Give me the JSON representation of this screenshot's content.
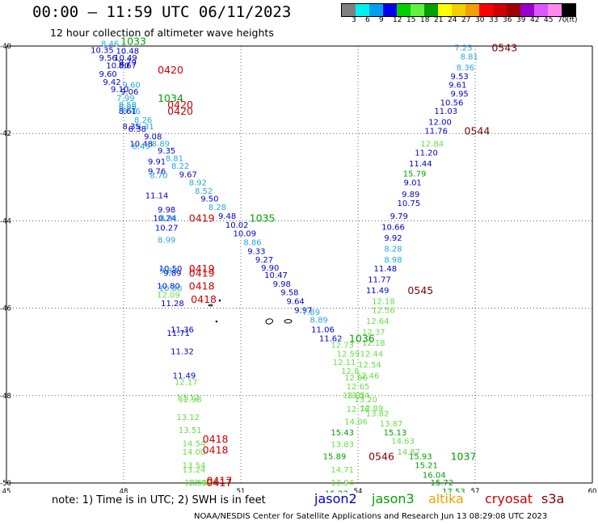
{
  "header": {
    "title": "00:00 – 11:59 UTC 06/11/2023",
    "subtitle": "12 hour collection of altimeter wave heights"
  },
  "legend": {
    "colors": [
      "#808080",
      "#00f0f0",
      "#00a0f0",
      "#0000f0",
      "#00d000",
      "#60f040",
      "#00a000",
      "#ffff00",
      "#f0d000",
      "#f0a000",
      "#ff0000",
      "#d00000",
      "#a00000",
      "#9900cc",
      "#dd55ff",
      "#ff88ee",
      "#000000"
    ],
    "labels": [
      "3",
      "6",
      "9",
      "12",
      "15",
      "18",
      "21",
      "24",
      "27",
      "30",
      "33",
      "36",
      "39",
      "42",
      "45",
      "70",
      "(ft)"
    ]
  },
  "axes": {
    "lat_labels": [
      "-40",
      "-42",
      "-44",
      "-46",
      "-48",
      "-50"
    ],
    "lon_labels": [
      "45",
      "48",
      "51",
      "54",
      "57",
      "60"
    ]
  },
  "satellite_colors": {
    "jason2": "#0000d0",
    "jason3": "#00a000",
    "altika": "#f0a000",
    "cryosat": "#d00000",
    "s3a": "#800000",
    "cyan": "#22a8e0",
    "light_green": "#66dd44"
  },
  "track_points": [
    {
      "lat": -39.95,
      "lon": 47.65,
      "v": "8.46",
      "c": "cyan"
    },
    {
      "lat": -40.1,
      "lon": 47.45,
      "v": "10.35",
      "c": "jason2"
    },
    {
      "lat": -40.12,
      "lon": 48.1,
      "v": "10.48",
      "c": "jason2"
    },
    {
      "lat": -40.28,
      "lon": 47.6,
      "v": "9.56",
      "c": "jason2"
    },
    {
      "lat": -40.28,
      "lon": 48.05,
      "v": "10.49",
      "c": "jason2"
    },
    {
      "lat": -40.38,
      "lon": 48.1,
      "v": "9.79",
      "c": "jason2"
    },
    {
      "lat": -40.45,
      "lon": 47.85,
      "v": "10.00",
      "c": "jason2"
    },
    {
      "lat": -40.45,
      "lon": 48.1,
      "v": "8.67",
      "c": "jason2"
    },
    {
      "lat": -40.65,
      "lon": 47.6,
      "v": "9.60",
      "c": "jason2"
    },
    {
      "lat": -40.83,
      "lon": 47.7,
      "v": "9.42",
      "c": "jason2"
    },
    {
      "lat": -40.9,
      "lon": 48.2,
      "v": "9.60",
      "c": "cyan"
    },
    {
      "lat": -41.0,
      "lon": 47.9,
      "v": "9.10",
      "c": "jason2"
    },
    {
      "lat": -41.05,
      "lon": 48.15,
      "v": "9.06",
      "c": "jason2"
    },
    {
      "lat": -41.2,
      "lon": 48.05,
      "v": "7.99",
      "c": "cyan"
    },
    {
      "lat": -41.35,
      "lon": 48.1,
      "v": "8.58",
      "c": "cyan"
    },
    {
      "lat": -41.4,
      "lon": 48.1,
      "v": "8.68",
      "c": "cyan"
    },
    {
      "lat": -41.5,
      "lon": 48.2,
      "v": "8.46",
      "c": "cyan"
    },
    {
      "lat": -41.5,
      "lon": 48.1,
      "v": "8.61",
      "c": "jason2"
    },
    {
      "lat": -41.7,
      "lon": 48.5,
      "v": "8.26",
      "c": "cyan"
    },
    {
      "lat": -41.85,
      "lon": 48.2,
      "v": "8.35",
      "c": "jason2"
    },
    {
      "lat": -41.85,
      "lon": 48.55,
      "v": "8.31",
      "c": "cyan"
    },
    {
      "lat": -41.9,
      "lon": 48.35,
      "v": "8.38",
      "c": "jason2"
    },
    {
      "lat": -42.08,
      "lon": 48.75,
      "v": "9.08",
      "c": "jason2"
    },
    {
      "lat": -42.25,
      "lon": 48.45,
      "v": "10.48",
      "c": "jason2"
    },
    {
      "lat": -42.25,
      "lon": 48.95,
      "v": "8.89",
      "c": "cyan"
    },
    {
      "lat": -42.3,
      "lon": 48.45,
      "v": "8.49",
      "c": "cyan"
    },
    {
      "lat": -42.4,
      "lon": 49.1,
      "v": "9.35",
      "c": "jason2"
    },
    {
      "lat": -42.58,
      "lon": 49.3,
      "v": "8.81",
      "c": "cyan"
    },
    {
      "lat": -42.65,
      "lon": 48.85,
      "v": "9.91",
      "c": "jason2"
    },
    {
      "lat": -42.75,
      "lon": 49.45,
      "v": "8.22",
      "c": "cyan"
    },
    {
      "lat": -42.87,
      "lon": 48.85,
      "v": "9.76",
      "c": "jason2"
    },
    {
      "lat": -42.95,
      "lon": 49.65,
      "v": "9.67",
      "c": "jason2"
    },
    {
      "lat": -42.97,
      "lon": 48.9,
      "v": "8.70",
      "c": "cyan"
    },
    {
      "lat": -43.13,
      "lon": 49.9,
      "v": "8.92",
      "c": "cyan"
    },
    {
      "lat": -43.33,
      "lon": 50.05,
      "v": "8.52",
      "c": "cyan"
    },
    {
      "lat": -43.43,
      "lon": 48.85,
      "v": "11.14",
      "c": "jason2"
    },
    {
      "lat": -43.5,
      "lon": 50.2,
      "v": "9.50",
      "c": "jason2"
    },
    {
      "lat": -43.7,
      "lon": 50.4,
      "v": "8.28",
      "c": "cyan"
    },
    {
      "lat": -43.75,
      "lon": 49.1,
      "v": "9.98",
      "c": "jason2"
    },
    {
      "lat": -43.9,
      "lon": 50.65,
      "v": "9.48",
      "c": "jason2"
    },
    {
      "lat": -43.95,
      "lon": 49.05,
      "v": "10.24",
      "c": "jason2"
    },
    {
      "lat": -43.95,
      "lon": 49.15,
      "v": "8.91",
      "c": "cyan"
    },
    {
      "lat": -44.1,
      "lon": 50.9,
      "v": "10.02",
      "c": "jason2"
    },
    {
      "lat": -44.17,
      "lon": 49.1,
      "v": "10.27",
      "c": "jason2"
    },
    {
      "lat": -44.3,
      "lon": 51.1,
      "v": "10.09",
      "c": "jason2"
    },
    {
      "lat": -44.45,
      "lon": 49.1,
      "v": "8.99",
      "c": "cyan"
    },
    {
      "lat": -44.5,
      "lon": 51.3,
      "v": "8.86",
      "c": "cyan"
    },
    {
      "lat": -44.7,
      "lon": 51.4,
      "v": "9.33",
      "c": "jason2"
    },
    {
      "lat": -44.9,
      "lon": 51.6,
      "v": "9.27",
      "c": "jason2"
    },
    {
      "lat": -45.08,
      "lon": 51.75,
      "v": "9.90",
      "c": "jason2"
    },
    {
      "lat": -45.1,
      "lon": 49.2,
      "v": "10.50",
      "c": "jason2"
    },
    {
      "lat": -45.15,
      "lon": 49.15,
      "v": "9.88",
      "c": "cyan"
    },
    {
      "lat": -45.2,
      "lon": 49.25,
      "v": "9.89",
      "c": "jason2"
    },
    {
      "lat": -45.25,
      "lon": 51.9,
      "v": "10.47",
      "c": "jason2"
    },
    {
      "lat": -45.45,
      "lon": 52.05,
      "v": "9.98",
      "c": "jason2"
    },
    {
      "lat": -45.5,
      "lon": 49.15,
      "v": "10.80",
      "c": "jason2"
    },
    {
      "lat": -45.55,
      "lon": 49.2,
      "v": "10.80",
      "c": "cyan"
    },
    {
      "lat": -45.65,
      "lon": 52.25,
      "v": "9.58",
      "c": "jason2"
    },
    {
      "lat": -45.7,
      "lon": 49.15,
      "v": "12.09",
      "c": "light_green"
    },
    {
      "lat": -45.85,
      "lon": 52.4,
      "v": "9.64",
      "c": "jason2"
    },
    {
      "lat": -45.9,
      "lon": 49.25,
      "v": "11.28",
      "c": "jason2"
    },
    {
      "lat": -46.05,
      "lon": 52.6,
      "v": "9.97",
      "c": "jason2"
    },
    {
      "lat": -46.1,
      "lon": 52.8,
      "v": "7.89",
      "c": "cyan"
    },
    {
      "lat": -46.28,
      "lon": 53.0,
      "v": "8.89",
      "c": "cyan"
    },
    {
      "lat": -46.5,
      "lon": 49.5,
      "v": "11.36",
      "c": "jason2"
    },
    {
      "lat": -46.5,
      "lon": 53.1,
      "v": "11.06",
      "c": "jason2"
    },
    {
      "lat": -46.58,
      "lon": 49.4,
      "v": "11.71",
      "c": "jason2"
    },
    {
      "lat": -46.7,
      "lon": 53.3,
      "v": "11.62",
      "c": "jason2"
    },
    {
      "lat": -46.85,
      "lon": 53.6,
      "v": "12.73",
      "c": "light_green"
    },
    {
      "lat": -47.0,
      "lon": 49.5,
      "v": "11.32",
      "c": "jason2"
    },
    {
      "lat": -47.05,
      "lon": 53.75,
      "v": "12.59",
      "c": "light_green"
    },
    {
      "lat": -47.25,
      "lon": 53.65,
      "v": "12.11",
      "c": "light_green"
    },
    {
      "lat": -47.45,
      "lon": 53.8,
      "v": "12.8",
      "c": "light_green"
    },
    {
      "lat": -47.55,
      "lon": 49.55,
      "v": "11.49",
      "c": "jason2"
    },
    {
      "lat": -47.6,
      "lon": 53.95,
      "v": "12.96",
      "c": "light_green"
    },
    {
      "lat": -47.7,
      "lon": 49.6,
      "v": "12.17",
      "c": "light_green"
    },
    {
      "lat": -47.8,
      "lon": 54.0,
      "v": "12.65",
      "c": "light_green"
    },
    {
      "lat": -48.0,
      "lon": 54.0,
      "v": "13.54",
      "c": "light_green"
    },
    {
      "lat": -48.0,
      "lon": 53.9,
      "v": "13.01",
      "c": "light_green"
    },
    {
      "lat": -48.05,
      "lon": 49.65,
      "v": "13.12",
      "c": "light_green"
    },
    {
      "lat": -48.1,
      "lon": 54.2,
      "v": "13.20",
      "c": "light_green"
    },
    {
      "lat": -48.1,
      "lon": 49.7,
      "v": "12.98",
      "c": "light_green"
    },
    {
      "lat": -48.3,
      "lon": 54.35,
      "v": "12.89",
      "c": "light_green"
    },
    {
      "lat": -48.32,
      "lon": 54.0,
      "v": "12.76",
      "c": "light_green"
    },
    {
      "lat": -48.42,
      "lon": 54.5,
      "v": "13.82",
      "c": "light_green"
    },
    {
      "lat": -48.5,
      "lon": 49.65,
      "v": "13.12",
      "c": "light_green"
    },
    {
      "lat": -48.6,
      "lon": 53.95,
      "v": "14.06",
      "c": "light_green"
    },
    {
      "lat": -48.65,
      "lon": 54.85,
      "v": "13.87",
      "c": "light_green"
    },
    {
      "lat": -48.8,
      "lon": 49.7,
      "v": "13.51",
      "c": "light_green"
    },
    {
      "lat": -48.85,
      "lon": 53.6,
      "v": "15.43",
      "c": "jason3"
    },
    {
      "lat": -48.85,
      "lon": 54.95,
      "v": "15.13",
      "c": "jason3"
    },
    {
      "lat": -49.05,
      "lon": 55.15,
      "v": "14.63",
      "c": "light_green"
    },
    {
      "lat": -49.1,
      "lon": 49.8,
      "v": "14.54",
      "c": "light_green"
    },
    {
      "lat": -49.12,
      "lon": 53.6,
      "v": "13.83",
      "c": "light_green"
    },
    {
      "lat": -49.3,
      "lon": 55.3,
      "v": "14.87",
      "c": "light_green"
    },
    {
      "lat": -49.3,
      "lon": 49.8,
      "v": "14.00",
      "c": "light_green"
    },
    {
      "lat": -49.4,
      "lon": 53.4,
      "v": "15.89",
      "c": "jason3"
    },
    {
      "lat": -49.4,
      "lon": 55.6,
      "v": "15.93",
      "c": "jason3"
    },
    {
      "lat": -49.6,
      "lon": 55.75,
      "v": "15.21",
      "c": "jason3"
    },
    {
      "lat": -49.6,
      "lon": 49.8,
      "v": "13.54",
      "c": "light_green"
    },
    {
      "lat": -49.7,
      "lon": 49.8,
      "v": "13.24",
      "c": "light_green"
    },
    {
      "lat": -49.7,
      "lon": 53.6,
      "v": "14.71",
      "c": "light_green"
    },
    {
      "lat": -49.82,
      "lon": 55.95,
      "v": "16.04",
      "c": "jason3"
    },
    {
      "lat": -50.0,
      "lon": 49.85,
      "v": "13.56",
      "c": "light_green"
    },
    {
      "lat": -50.0,
      "lon": 49.95,
      "v": "13.99",
      "c": "light_green"
    },
    {
      "lat": -50.0,
      "lon": 53.6,
      "v": "13.94",
      "c": "light_green"
    },
    {
      "lat": -50.0,
      "lon": 56.15,
      "v": "15.72",
      "c": "jason3"
    },
    {
      "lat": -50.2,
      "lon": 56.45,
      "v": "17.53",
      "c": "jason3"
    },
    {
      "lat": -50.25,
      "lon": 53.45,
      "v": "15.23",
      "c": "jason3"
    },
    {
      "lat": -50.4,
      "lon": 56.5,
      "v": "15.77",
      "c": "jason3"
    },
    {
      "lat": -40.05,
      "lon": 56.7,
      "v": "7.25",
      "c": "cyan"
    },
    {
      "lat": -40.25,
      "lon": 56.85,
      "v": "8.81",
      "c": "cyan"
    },
    {
      "lat": -40.5,
      "lon": 56.75,
      "v": "8.36",
      "c": "cyan"
    },
    {
      "lat": -40.7,
      "lon": 56.6,
      "v": "9.53",
      "c": "jason2"
    },
    {
      "lat": -40.9,
      "lon": 56.55,
      "v": "9.61",
      "c": "jason2"
    },
    {
      "lat": -41.1,
      "lon": 56.6,
      "v": "9.95",
      "c": "jason2"
    },
    {
      "lat": -41.3,
      "lon": 56.4,
      "v": "10.56",
      "c": "jason2"
    },
    {
      "lat": -41.5,
      "lon": 56.25,
      "v": "11.03",
      "c": "jason2"
    },
    {
      "lat": -41.75,
      "lon": 56.1,
      "v": "12.00",
      "c": "jason2"
    },
    {
      "lat": -41.95,
      "lon": 56.0,
      "v": "11.76",
      "c": "jason2"
    },
    {
      "lat": -42.25,
      "lon": 55.9,
      "v": "12.84",
      "c": "light_green"
    },
    {
      "lat": -42.45,
      "lon": 55.75,
      "v": "11.20",
      "c": "jason2"
    },
    {
      "lat": -42.7,
      "lon": 55.6,
      "v": "11.44",
      "c": "jason2"
    },
    {
      "lat": -42.93,
      "lon": 55.45,
      "v": "15.79",
      "c": "jason3"
    },
    {
      "lat": -43.13,
      "lon": 55.4,
      "v": "9.01",
      "c": "jason2"
    },
    {
      "lat": -43.4,
      "lon": 55.35,
      "v": "9.89",
      "c": "jason2"
    },
    {
      "lat": -43.6,
      "lon": 55.3,
      "v": "10.75",
      "c": "jason2"
    },
    {
      "lat": -43.9,
      "lon": 55.05,
      "v": "9.79",
      "c": "jason2"
    },
    {
      "lat": -44.15,
      "lon": 54.9,
      "v": "10.66",
      "c": "jason2"
    },
    {
      "lat": -44.4,
      "lon": 54.9,
      "v": "9.92",
      "c": "jason2"
    },
    {
      "lat": -44.65,
      "lon": 54.9,
      "v": "8.28",
      "c": "cyan"
    },
    {
      "lat": -44.9,
      "lon": 54.9,
      "v": "8.98",
      "c": "cyan"
    },
    {
      "lat": -45.1,
      "lon": 54.7,
      "v": "11.48",
      "c": "jason2"
    },
    {
      "lat": -45.35,
      "lon": 54.55,
      "v": "11.77",
      "c": "jason2"
    },
    {
      "lat": -45.6,
      "lon": 54.5,
      "v": "11.49",
      "c": "jason2"
    },
    {
      "lat": -45.85,
      "lon": 54.65,
      "v": "12.18",
      "c": "light_green"
    },
    {
      "lat": -46.05,
      "lon": 54.65,
      "v": "12.56",
      "c": "light_green"
    },
    {
      "lat": -46.3,
      "lon": 54.5,
      "v": "12.64",
      "c": "light_green"
    },
    {
      "lat": -46.55,
      "lon": 54.4,
      "v": "12.37",
      "c": "light_green"
    },
    {
      "lat": -46.8,
      "lon": 54.4,
      "v": "12.18",
      "c": "light_green"
    },
    {
      "lat": -47.05,
      "lon": 54.35,
      "v": "12.44",
      "c": "light_green"
    },
    {
      "lat": -47.3,
      "lon": 54.3,
      "v": "12.54",
      "c": "light_green"
    },
    {
      "lat": -47.55,
      "lon": 54.25,
      "v": "12.46",
      "c": "light_green"
    }
  ],
  "time_labels": [
    {
      "lat": -39.9,
      "lon": 48.25,
      "v": "1033",
      "c": "jason3"
    },
    {
      "lat": -40.55,
      "lon": 49.2,
      "v": "0420",
      "c": "cryosat"
    },
    {
      "lat": -41.2,
      "lon": 49.2,
      "v": "1034",
      "c": "jason3"
    },
    {
      "lat": -41.35,
      "lon": 49.45,
      "v": "0420",
      "c": "cryosat"
    },
    {
      "lat": -41.5,
      "lon": 49.45,
      "v": "0420",
      "c": "cryosat"
    },
    {
      "lat": -43.95,
      "lon": 50.0,
      "v": "0419",
      "c": "cryosat"
    },
    {
      "lat": -43.95,
      "lon": 51.55,
      "v": "1035",
      "c": "jason3"
    },
    {
      "lat": -45.1,
      "lon": 50.0,
      "v": "0419",
      "c": "cryosat"
    },
    {
      "lat": -45.2,
      "lon": 50.0,
      "v": "0419",
      "c": "cryosat"
    },
    {
      "lat": -45.5,
      "lon": 50.0,
      "v": "0418",
      "c": "cryosat"
    },
    {
      "lat": -45.8,
      "lon": 50.05,
      "v": "0418",
      "c": "cryosat"
    },
    {
      "lat": -46.7,
      "lon": 54.1,
      "v": "1036",
      "c": "jason3"
    },
    {
      "lat": -49.0,
      "lon": 50.35,
      "v": "0418",
      "c": "cryosat"
    },
    {
      "lat": -49.25,
      "lon": 50.35,
      "v": "0418",
      "c": "cryosat"
    },
    {
      "lat": -49.95,
      "lon": 50.45,
      "v": "0417",
      "c": "cryosat"
    },
    {
      "lat": -50.0,
      "lon": 50.45,
      "v": "0417",
      "c": "cryosat"
    },
    {
      "lat": -40.05,
      "lon": 57.75,
      "v": "0543",
      "c": "s3a"
    },
    {
      "lat": -41.95,
      "lon": 57.05,
      "v": "0544",
      "c": "s3a"
    },
    {
      "lat": -45.6,
      "lon": 55.6,
      "v": "0545",
      "c": "s3a"
    },
    {
      "lat": -49.4,
      "lon": 54.6,
      "v": "0546",
      "c": "s3a"
    },
    {
      "lat": -49.4,
      "lon": 56.7,
      "v": "1037",
      "c": "jason3"
    }
  ],
  "note": "note:  1) Time is in UTC;  2) SWH is in feet",
  "satellites": [
    {
      "name": "jason2",
      "c": "jason2"
    },
    {
      "name": "jason3",
      "c": "jason3"
    },
    {
      "name": "altika",
      "c": "altika"
    },
    {
      "name": "cryosat",
      "c": "cryosat"
    },
    {
      "name": "s3a",
      "c": "s3a"
    }
  ],
  "footer": "NOAA/NESDIS Center for Satellite Applications and Research    Jun 13 08:29:08 UTC 2023"
}
